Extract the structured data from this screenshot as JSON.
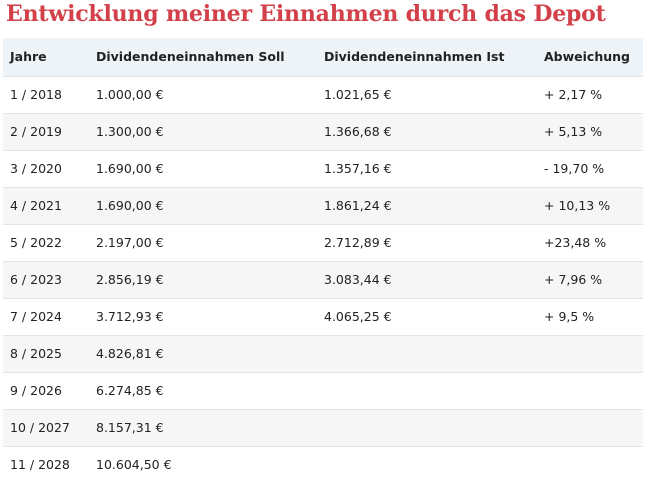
{
  "title": "Entwicklung meiner Einnahmen durch das Depot",
  "table": {
    "headers": [
      "Jahre",
      "Dividendeneinnahmen Soll",
      "Dividendeneinnahmen Ist",
      "Abweichung"
    ],
    "rows": [
      [
        "1 / 2018",
        "1.000,00 €",
        "1.021,65 €",
        "+ 2,17 %"
      ],
      [
        "2 / 2019",
        "1.300,00 €",
        "1.366,68 €",
        "+ 5,13 %"
      ],
      [
        "3 / 2020",
        "1.690,00 €",
        "1.357,16 €",
        "- 19,70 %"
      ],
      [
        "4 / 2021",
        "1.690,00 €",
        "1.861,24 €",
        "+ 10,13 %"
      ],
      [
        "5 / 2022",
        "2.197,00 €",
        "2.712,89 €",
        "+23,48 %"
      ],
      [
        "6 / 2023",
        "2.856,19 €",
        "3.083,44 €",
        "+ 7,96 %"
      ],
      [
        "7 / 2024",
        "3.712,93 €",
        "4.065,25 €",
        "+ 9,5 %"
      ],
      [
        "8 / 2025",
        "4.826,81 €",
        "",
        ""
      ],
      [
        "9 / 2026",
        "6.274,85 €",
        "",
        ""
      ],
      [
        "10 / 2027",
        "8.157,31 €",
        "",
        ""
      ],
      [
        "11 / 2028",
        "10.604,50 €",
        "",
        ""
      ]
    ]
  }
}
